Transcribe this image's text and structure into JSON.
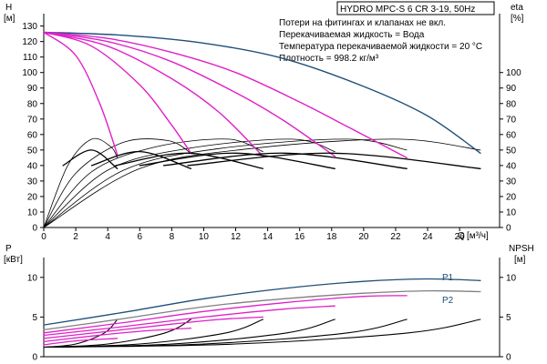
{
  "chart_data": [
    {
      "type": "line",
      "title": "HYDRO MPC-S 6 CR 3-19, 50Hz",
      "annotations": [
        "Потери на фитингах и клапанах не вкл.",
        "Перекачиваемая жидкость = Вода",
        "Температура перекачиваемой жидкости = 20 °C",
        "Плотность = 998.2 кг/м³"
      ],
      "xlabel": "Q",
      "xunit": "[м³/ч]",
      "xlim": [
        0,
        28.5
      ],
      "x_ticks": [
        0,
        2,
        4,
        6,
        8,
        10,
        12,
        14,
        16,
        18,
        20,
        22,
        24,
        26
      ],
      "ylabel_left": "H",
      "yunit_left": "[м]",
      "ylim_left": [
        0,
        138
      ],
      "y_ticks_left": [
        0,
        10,
        20,
        30,
        40,
        50,
        60,
        70,
        80,
        90,
        100,
        110,
        120,
        130
      ],
      "ylabel_right": "eta",
      "yunit_right": "[%]",
      "y_ticks_right": [
        0,
        10,
        20,
        30,
        40,
        50,
        60,
        70,
        80,
        90,
        100
      ],
      "grid": false,
      "head_curves": [
        {
          "color": "#1f4e79",
          "x": [
            0,
            5,
            10,
            15,
            20,
            24,
            27.3
          ],
          "y": [
            126,
            124,
            119,
            109,
            91,
            72,
            48
          ]
        },
        {
          "color": "#e020c8",
          "x": [
            0,
            4,
            8,
            12,
            16,
            19,
            22.7
          ],
          "y": [
            126,
            122,
            113,
            100,
            81,
            65,
            45
          ]
        },
        {
          "color": "#e020c8",
          "x": [
            0,
            4,
            8,
            12,
            15,
            18.2
          ],
          "y": [
            126,
            120,
            107,
            87,
            69,
            46
          ]
        },
        {
          "color": "#e020c8",
          "x": [
            0,
            4,
            8,
            11,
            13.7
          ],
          "y": [
            126,
            117,
            96,
            74,
            46
          ]
        },
        {
          "color": "#e020c8",
          "x": [
            0,
            3,
            6,
            8,
            9.2
          ],
          "y": [
            126,
            117,
            92,
            66,
            48
          ]
        },
        {
          "color": "#e020c8",
          "x": [
            0,
            2,
            3.5,
            4.6
          ],
          "y": [
            126,
            111,
            80,
            47
          ]
        }
      ],
      "eta_curves": [
        {
          "color": "#000000",
          "x": [
            0,
            1.5,
            3,
            4.2,
            4.6
          ],
          "y": [
            0,
            40,
            57,
            52,
            45
          ]
        },
        {
          "color": "#000000",
          "x": [
            0,
            2,
            5,
            7.8,
            9.2
          ],
          "y": [
            0,
            35,
            55,
            56,
            48
          ]
        },
        {
          "color": "#000000",
          "x": [
            0,
            3,
            7,
            11.5,
            13.7
          ],
          "y": [
            0,
            36,
            52,
            57,
            49
          ]
        },
        {
          "color": "#000000",
          "x": [
            0,
            4,
            9,
            15.5,
            18.2
          ],
          "y": [
            0,
            37,
            51,
            57,
            49
          ]
        },
        {
          "color": "#000000",
          "x": [
            0,
            5,
            11,
            19,
            22.7
          ],
          "y": [
            0,
            37,
            51,
            57,
            50
          ]
        },
        {
          "color": "#000000",
          "x": [
            0,
            6,
            13,
            22,
            27.3
          ],
          "y": [
            0,
            38,
            51,
            57,
            50
          ]
        }
      ],
      "duty_curves": [
        {
          "color": "#000000",
          "x": [
            1.2,
            3,
            4.6
          ],
          "y": [
            40,
            50,
            38
          ]
        },
        {
          "color": "#000000",
          "x": [
            3,
            6,
            9.2
          ],
          "y": [
            40,
            49,
            38
          ]
        },
        {
          "color": "#000000",
          "x": [
            4.5,
            9,
            13.7
          ],
          "y": [
            40,
            48,
            38
          ]
        },
        {
          "color": "#000000",
          "x": [
            6,
            12,
            18.2
          ],
          "y": [
            40,
            48,
            38
          ]
        },
        {
          "color": "#000000",
          "x": [
            7.5,
            15,
            22.7
          ],
          "y": [
            40,
            48,
            38
          ]
        },
        {
          "color": "#000000",
          "x": [
            9,
            18,
            27.3
          ],
          "y": [
            40,
            48,
            38
          ]
        }
      ]
    },
    {
      "type": "line",
      "ylabel_left": "P",
      "yunit_left": "[кВт]",
      "ylim_left": [
        0,
        12.5
      ],
      "y_ticks_left": [
        0,
        5,
        10
      ],
      "ylabel_right": "NPSH",
      "yunit_right": "[м]",
      "y_ticks_right": [
        0,
        5,
        10
      ],
      "xlim": [
        0,
        28.5
      ],
      "grid": false,
      "legend": [
        "P1",
        "P2"
      ],
      "power_curves": [
        {
          "name": "P1",
          "color": "#1f4e79",
          "x": [
            0,
            5,
            10,
            15,
            20,
            24,
            27.3
          ],
          "y": [
            4.0,
            5.6,
            7.3,
            8.6,
            9.5,
            9.8,
            9.6
          ]
        },
        {
          "name": "P2",
          "color": "#808080",
          "x": [
            0,
            5,
            10,
            15,
            20,
            24,
            27.3
          ],
          "y": [
            3.4,
            4.8,
            6.3,
            7.3,
            8.0,
            8.3,
            8.2
          ]
        },
        {
          "color": "#e020c8",
          "x": [
            0,
            5,
            10,
            15,
            20,
            22.7
          ],
          "y": [
            3.0,
            4.3,
            5.7,
            6.8,
            7.6,
            7.7
          ]
        },
        {
          "color": "#e020c8",
          "x": [
            0,
            5,
            10,
            15,
            18.2
          ],
          "y": [
            2.7,
            3.8,
            5.0,
            6.0,
            6.4
          ]
        },
        {
          "color": "#e020c8",
          "x": [
            0,
            4,
            8,
            11,
            13.7
          ],
          "y": [
            2.3,
            3.2,
            4.1,
            4.7,
            5.0
          ]
        },
        {
          "color": "#e020c8",
          "x": [
            0,
            3,
            6,
            9.2
          ],
          "y": [
            1.9,
            2.6,
            3.2,
            3.6
          ]
        },
        {
          "color": "#e020c8",
          "x": [
            0,
            2,
            4.6
          ],
          "y": [
            1.5,
            2.0,
            2.3
          ]
        }
      ],
      "npsh_curves": [
        {
          "color": "#000000",
          "x": [
            0,
            2,
            3.8,
            4.6
          ],
          "y": [
            1.2,
            1.6,
            3.0,
            4.7
          ]
        },
        {
          "color": "#000000",
          "x": [
            0,
            4,
            7.6,
            9.2
          ],
          "y": [
            1.2,
            1.6,
            3.0,
            4.7
          ]
        },
        {
          "color": "#000000",
          "x": [
            0,
            6,
            11.4,
            13.7
          ],
          "y": [
            1.2,
            1.6,
            3.0,
            4.7
          ]
        },
        {
          "color": "#000000",
          "x": [
            0,
            8,
            15.2,
            18.2
          ],
          "y": [
            1.2,
            1.6,
            3.0,
            4.7
          ]
        },
        {
          "color": "#000000",
          "x": [
            0,
            10,
            19,
            22.7
          ],
          "y": [
            1.2,
            1.6,
            3.0,
            4.7
          ]
        },
        {
          "color": "#000000",
          "x": [
            0,
            12,
            22.8,
            27.3
          ],
          "y": [
            1.2,
            1.6,
            3.0,
            4.7
          ]
        }
      ]
    }
  ]
}
